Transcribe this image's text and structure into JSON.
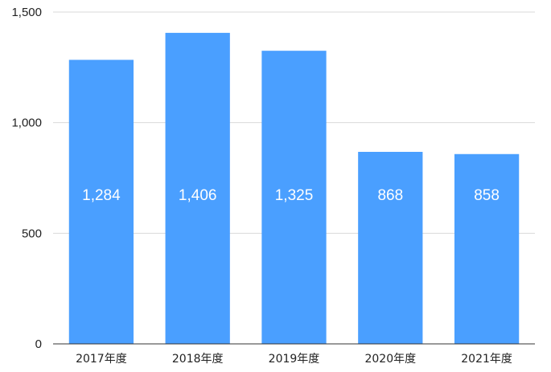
{
  "chart_data": {
    "type": "bar",
    "title": "",
    "xlabel": "",
    "ylabel": "",
    "categories": [
      "2017年度",
      "2018年度",
      "2019年度",
      "2020年度",
      "2021年度"
    ],
    "values": [
      1284,
      1406,
      1325,
      868,
      858
    ],
    "value_labels": [
      "1,284",
      "1,406",
      "1,325",
      "868",
      "858"
    ],
    "ylim": [
      0,
      1500
    ],
    "yticks": [
      0,
      500,
      1000,
      1500
    ],
    "ytick_labels": [
      "0",
      "500",
      "1,000",
      "1,500"
    ],
    "grid": true,
    "legend": "none",
    "colors": {
      "bar": "#4a9fff",
      "label": "#ffffff",
      "grid": "#d9d9d9",
      "axis": "#333333"
    }
  }
}
